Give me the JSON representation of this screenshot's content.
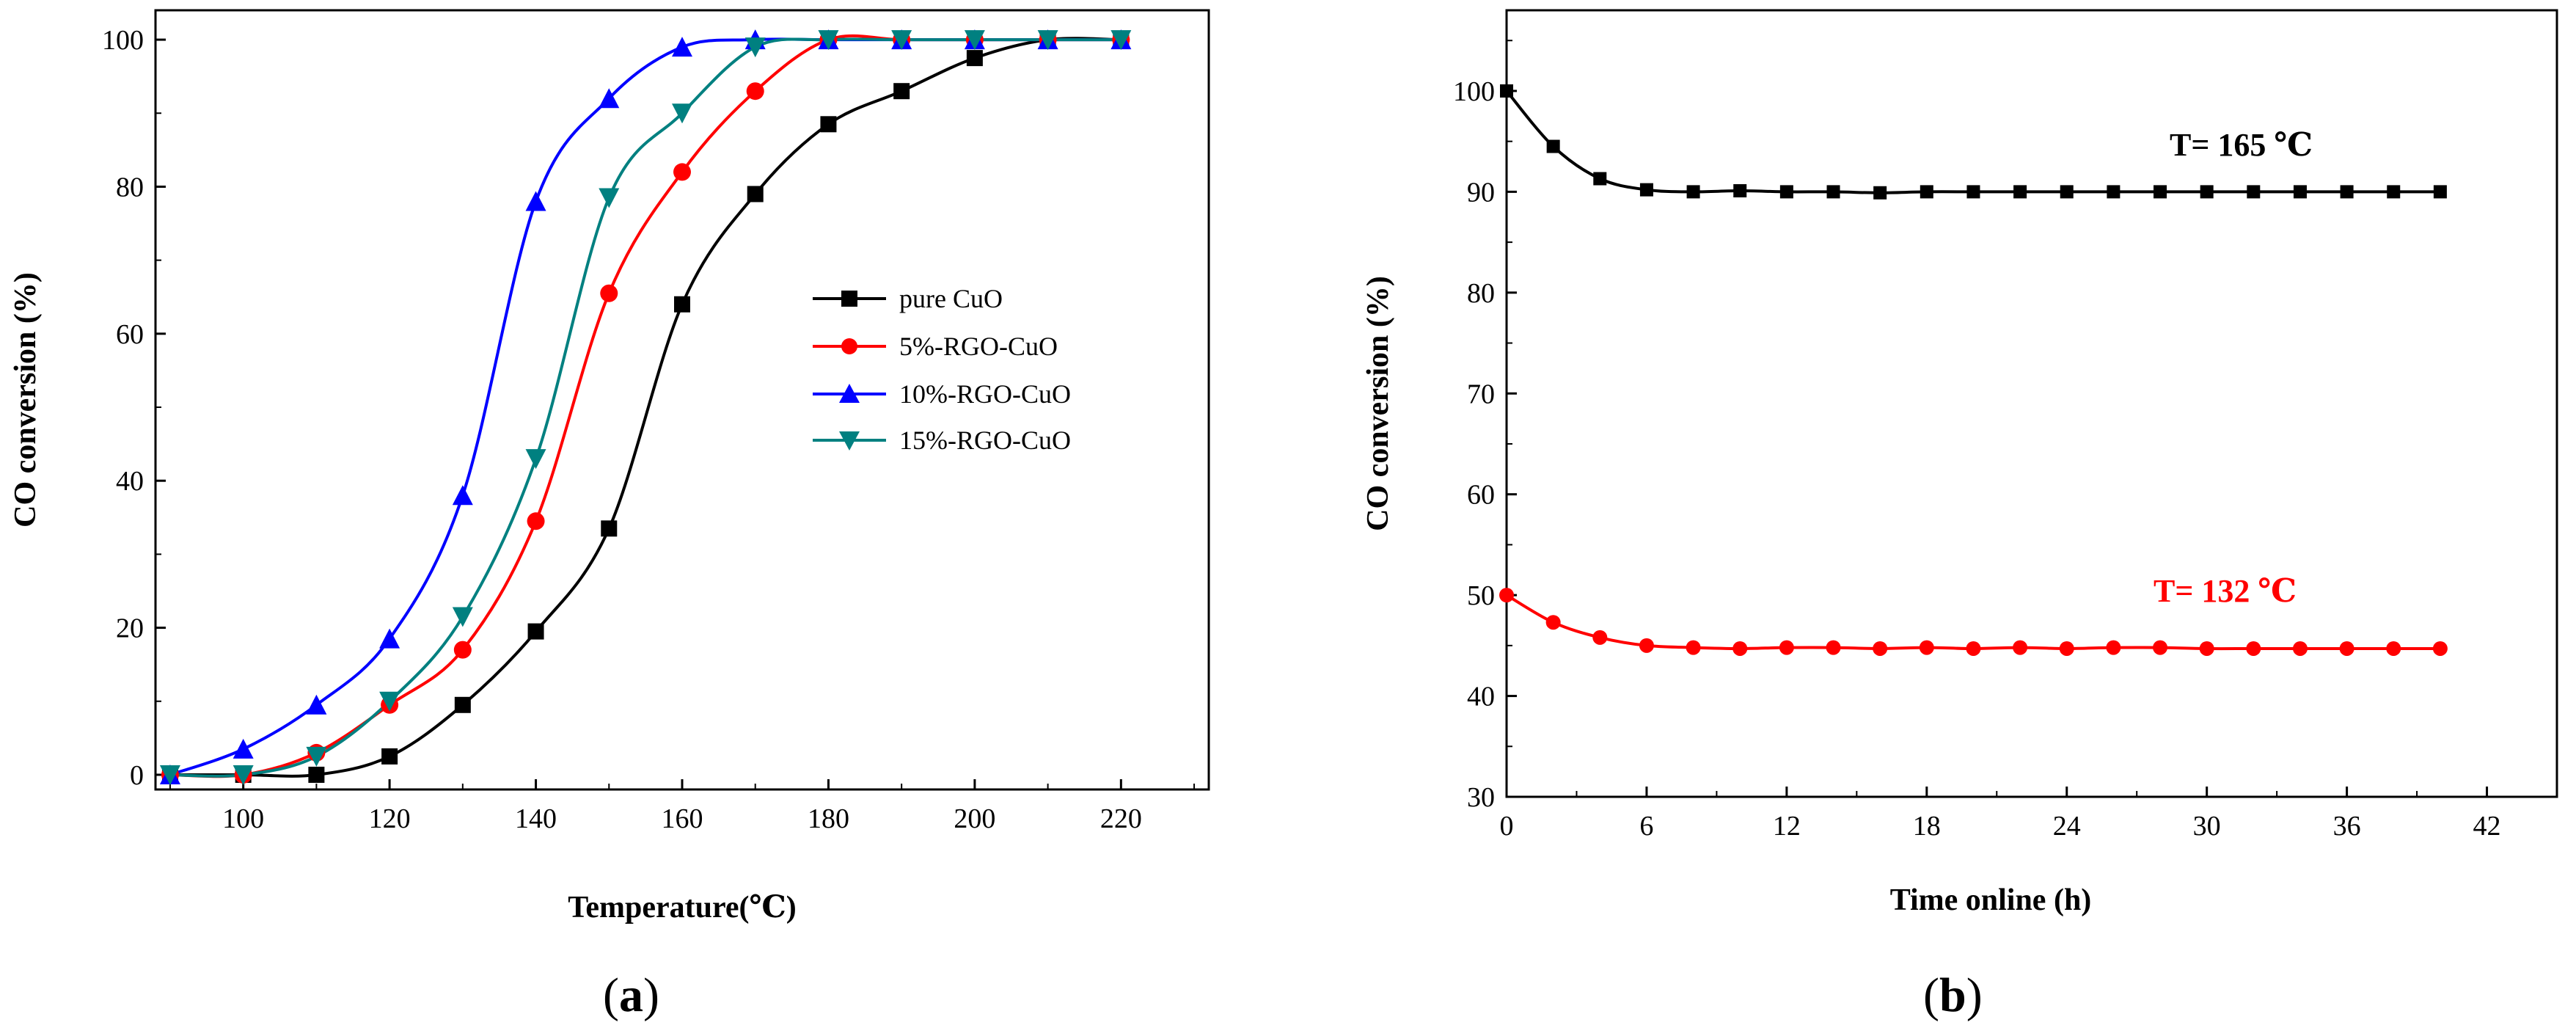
{
  "chart_data": [
    {
      "type": "line",
      "panel_label": "(a)",
      "panel_letter": "a",
      "xlabel": "Temperature(℃)",
      "ylabel": "CO conversion (%)",
      "xlim": [
        88,
        232
      ],
      "ylim": [
        -2,
        104
      ],
      "xticks": [
        100,
        120,
        140,
        160,
        180,
        200,
        220
      ],
      "yticks": [
        0,
        20,
        40,
        60,
        80,
        100
      ],
      "legend_position": "center-right",
      "x": [
        90,
        100,
        110,
        120,
        130,
        140,
        150,
        160,
        170,
        180,
        190,
        200,
        210,
        220
      ],
      "series": [
        {
          "name": "pure CuO",
          "color": "#000000",
          "marker": "square",
          "values": [
            0,
            0,
            0,
            2.5,
            9.5,
            19.5,
            33.5,
            64,
            79,
            88.5,
            93,
            97.5,
            100,
            100
          ]
        },
        {
          "name": "5%-RGO-CuO",
          "color": "#ff0000",
          "marker": "circle",
          "values": [
            0,
            0,
            3,
            9.5,
            17,
            34.5,
            65.5,
            82,
            93,
            100,
            100,
            100,
            100,
            100
          ]
        },
        {
          "name": "10%-RGO-CuO",
          "color": "#0000ff",
          "marker": "triangle-up",
          "values": [
            0,
            3.5,
            9.5,
            18.5,
            38,
            78,
            92,
            99,
            100,
            100,
            100,
            100,
            100,
            100
          ]
        },
        {
          "name": "15%-RGO-CuO",
          "color": "#008080",
          "marker": "triangle-down",
          "values": [
            0,
            0,
            2.5,
            10,
            21.5,
            43,
            78.5,
            90,
            99,
            100,
            100,
            100,
            100,
            100
          ]
        }
      ]
    },
    {
      "type": "line",
      "panel_label": "(b)",
      "panel_letter": "b",
      "xlabel": "Time online (h)",
      "ylabel": "CO conversion (%)",
      "xlim": [
        0,
        45
      ],
      "ylim": [
        30,
        108
      ],
      "xticks": [
        0,
        6,
        12,
        18,
        24,
        30,
        36,
        42
      ],
      "yticks": [
        30,
        40,
        50,
        60,
        70,
        80,
        90,
        100
      ],
      "x": [
        0,
        2,
        4,
        6,
        8,
        10,
        12,
        14,
        16,
        18,
        20,
        22,
        24,
        26,
        28,
        30,
        32,
        34,
        36,
        38,
        40
      ],
      "series": [
        {
          "name": "T= 165 ℃",
          "color": "#000000",
          "marker": "square",
          "values": [
            100,
            94.5,
            91.3,
            90.2,
            90,
            90.1,
            90,
            90,
            89.9,
            90,
            90,
            90,
            90,
            90,
            90,
            90,
            90,
            90,
            90,
            90,
            90
          ]
        },
        {
          "name": "T= 132 ℃",
          "color": "#ff0000",
          "marker": "circle",
          "values": [
            50,
            47.3,
            45.8,
            45,
            44.8,
            44.7,
            44.8,
            44.8,
            44.7,
            44.8,
            44.7,
            44.8,
            44.7,
            44.8,
            44.8,
            44.7,
            44.7,
            44.7,
            44.7,
            44.7,
            44.7
          ]
        }
      ],
      "annotations": [
        "T= 165 ℃",
        "T= 132 ℃"
      ]
    }
  ]
}
